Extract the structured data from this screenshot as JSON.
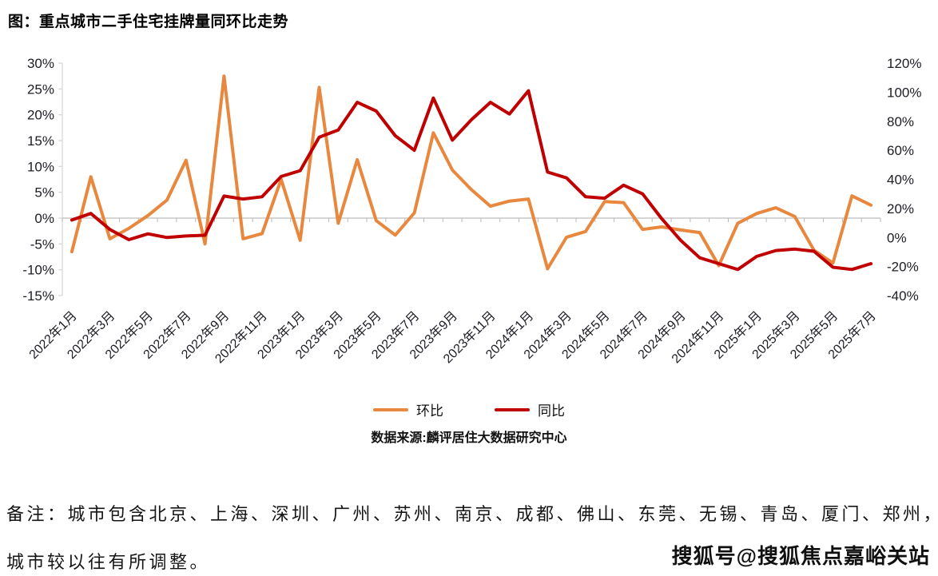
{
  "title": "图：重点城市二手住宅挂牌量同环比走势",
  "legend": [
    {
      "label": "环比",
      "color": "#E8873E"
    },
    {
      "label": "同比",
      "color": "#C00000"
    }
  ],
  "source": "数据来源:麟评居住大数据研究中心",
  "notes": {
    "line1": "备注：城市包含北京、上海、深圳、广州、苏州、南京、成都、佛山、东莞、无锡、青岛、厦门、郑州，",
    "line2": "城市较以往有所调整。"
  },
  "watermark": "搜狐号@搜狐焦点嘉峪关站",
  "chart_data": {
    "type": "line",
    "title": "图：重点城市二手住宅挂牌量同环比走势",
    "categories": [
      "2022年1月",
      "2022年2月",
      "2022年3月",
      "2022年4月",
      "2022年5月",
      "2022年6月",
      "2022年7月",
      "2022年8月",
      "2022年9月",
      "2022年10月",
      "2022年11月",
      "2022年12月",
      "2023年1月",
      "2023年2月",
      "2023年3月",
      "2023年4月",
      "2023年5月",
      "2023年6月",
      "2023年7月",
      "2023年8月",
      "2023年9月",
      "2023年10月",
      "2023年11月",
      "2023年12月",
      "2024年1月",
      "2024年2月",
      "2024年3月",
      "2024年4月",
      "2024年5月",
      "2024年6月",
      "2024年7月",
      "2024年8月",
      "2024年9月",
      "2024年10月",
      "2024年11月",
      "2024年12月",
      "2025年1月",
      "2025年2月",
      "2025年3月",
      "2025年4月",
      "2025年5月",
      "2025年6月",
      "2025年7月"
    ],
    "x_tick_labels": [
      "2022年1月",
      "2022年3月",
      "2022年5月",
      "2022年7月",
      "2022年9月",
      "2022年11月",
      "2023年1月",
      "2023年3月",
      "2023年5月",
      "2023年7月",
      "2023年9月",
      "2023年11月",
      "2024年1月",
      "2024年3月",
      "2024年5月",
      "2024年7月",
      "2024年9月",
      "2024年11月",
      "2025年1月",
      "2025年3月",
      "2025年5月",
      "2025年7月"
    ],
    "series": [
      {
        "name": "环比",
        "axis": "left",
        "color": "#E8873E",
        "values": [
          -6.5,
          8,
          -4,
          -2,
          0.5,
          3.5,
          11.2,
          -5,
          27.5,
          -4,
          -3,
          7.5,
          -4.3,
          25.3,
          -1,
          11.3,
          -0.5,
          -3.3,
          1,
          16.5,
          9.3,
          5.5,
          2.3,
          3.3,
          3.7,
          -9.8,
          -3.7,
          -2.6,
          3.2,
          3,
          -2.2,
          -1.7,
          -2.3,
          -2.8,
          -9.2,
          -1,
          0.9,
          2,
          0.3,
          -6.2,
          -8.7,
          4.3,
          2.5
        ]
      },
      {
        "name": "同比",
        "axis": "right",
        "color": "#C00000",
        "values": [
          12,
          16.5,
          5.5,
          -1.5,
          2.5,
          0,
          1,
          1.5,
          28.5,
          26.5,
          28,
          42,
          46,
          69,
          74,
          93,
          87,
          70,
          60,
          96,
          67,
          81,
          93,
          85,
          101,
          45,
          41,
          28,
          27,
          36,
          30,
          13,
          -2,
          -14,
          -18,
          -22,
          -13,
          -9,
          -8,
          -9.5,
          -20.5,
          -22,
          -18
        ]
      }
    ],
    "left_axis": {
      "min": -15,
      "max": 30,
      "step": 5,
      "tick_labels": [
        "30%",
        "25%",
        "20%",
        "15%",
        "10%",
        "5%",
        "0%",
        "-5%",
        "-10%",
        "-15%"
      ]
    },
    "right_axis": {
      "min": -40,
      "max": 120,
      "step": 20,
      "tick_labels": [
        "120%",
        "100%",
        "80%",
        "60%",
        "40%",
        "20%",
        "0%",
        "-20%",
        "-40%"
      ]
    },
    "grid": "zero-line-only",
    "legend_position": "bottom"
  }
}
